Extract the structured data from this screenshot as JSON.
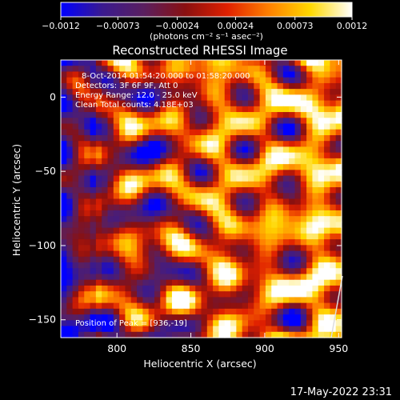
{
  "chart_data": {
    "type": "heatmap",
    "title": "Reconstructed RHESSI Image",
    "xlabel": "Heliocentric X (arcsec)",
    "ylabel": "Heliocentric Y (arcsec)",
    "xlim": [
      762,
      952
    ],
    "ylim": [
      -162,
      25
    ],
    "x_ticks": [
      {
        "value": 800,
        "label": "800"
      },
      {
        "value": 850,
        "label": "850"
      },
      {
        "value": 900,
        "label": "900"
      },
      {
        "value": 950,
        "label": "950"
      }
    ],
    "y_ticks": [
      {
        "value": 0,
        "label": "0"
      },
      {
        "value": -50,
        "label": "−50"
      },
      {
        "value": -100,
        "label": "−100"
      },
      {
        "value": -150,
        "label": "−150"
      }
    ],
    "colorbar": {
      "range": [
        -0.0012,
        0.0012
      ],
      "ticks": [
        {
          "value": -0.0012,
          "label": "−0.0012"
        },
        {
          "value": -0.00073,
          "label": "−0.00073"
        },
        {
          "value": -0.00024,
          "label": "−0.00024"
        },
        {
          "value": 0.00024,
          "label": "0.00024"
        },
        {
          "value": 0.00073,
          "label": "0.00073"
        },
        {
          "value": 0.0012,
          "label": "0.0012"
        }
      ],
      "units_label": "(photons cm⁻² s⁻¹ asec⁻²)",
      "colors": [
        "#0000ff",
        "#3a1a8f",
        "#5a1f5f",
        "#8a1010",
        "#e02000",
        "#ff8000",
        "#ffd800",
        "#ffffff"
      ]
    },
    "annotations": [
      "8-Oct-2014 01:54:20.000 to 01:58:20.000",
      "Detectors: 3F 6F 9F, Att 0",
      "Energy Range: 12.0 - 25.0 keV",
      "Clean     Total counts: 4.18E+03"
    ],
    "peak_label": "Position of Peak = [936,-19]",
    "peak": {
      "x": 936,
      "y": -19
    },
    "grid": false,
    "legend": "none",
    "timestamp": "17-May-2022 23:31",
    "image_grid": {
      "nx": 48,
      "ny": 48,
      "note_values": "normalized intensity pattern in [-1,1] of colorbar range"
    }
  }
}
